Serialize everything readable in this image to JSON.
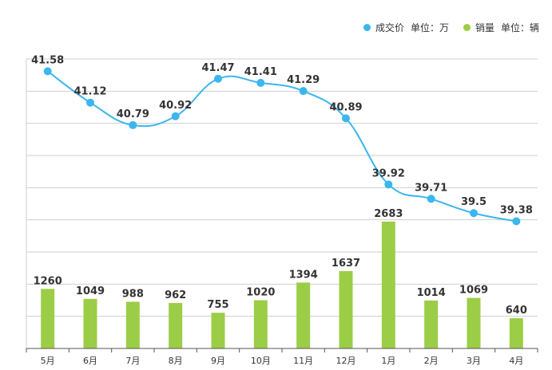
{
  "chart_data": {
    "type": "bar+line",
    "categories": [
      "5月",
      "6月",
      "7月",
      "8月",
      "9月",
      "10月",
      "11月",
      "12月",
      "1月",
      "2月",
      "3月",
      "4月"
    ],
    "series": [
      {
        "name": "成交价",
        "unit_label": "单位：万",
        "type": "line",
        "color": "#3bb6ee",
        "values": [
          41.58,
          41.12,
          40.79,
          40.92,
          41.47,
          41.41,
          41.29,
          40.89,
          39.92,
          39.71,
          39.5,
          39.38
        ],
        "labels": [
          "41.58",
          "41.12",
          "40.79",
          "40.92",
          "41.47",
          "41.41",
          "41.29",
          "40.89",
          "39.92",
          "39.71",
          "39.5",
          "39.38"
        ]
      },
      {
        "name": "销量",
        "unit_label": "单位：辆",
        "type": "bar",
        "color": "#9ccd47",
        "values": [
          1260,
          1049,
          988,
          962,
          755,
          1020,
          1394,
          1637,
          2683,
          1014,
          1069,
          640
        ],
        "labels": [
          "1260",
          "1049",
          "988",
          "962",
          "755",
          "1020",
          "1394",
          "1637",
          "2683",
          "1014",
          "1069",
          "640"
        ]
      }
    ],
    "price_range": [
      39.0,
      41.9
    ],
    "volume_range": [
      0,
      2900
    ],
    "grid": true,
    "legend_position": "top-right"
  }
}
